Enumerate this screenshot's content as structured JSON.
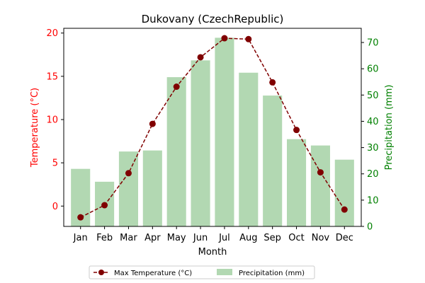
{
  "chart_data": {
    "type": "bar+line",
    "title": "Dukovany (CzechRepublic)",
    "xlabel": "Month",
    "categories": [
      "Jan",
      "Feb",
      "Mar",
      "Apr",
      "May",
      "Jun",
      "Jul",
      "Aug",
      "Sep",
      "Oct",
      "Nov",
      "Dec"
    ],
    "series": [
      {
        "name": "Max Temperature (°C)",
        "type": "line",
        "axis": "left",
        "values": [
          -1.3,
          0.1,
          3.8,
          9.5,
          13.8,
          17.2,
          19.4,
          19.3,
          14.3,
          8.8,
          3.9,
          -0.4
        ],
        "color": "#800000",
        "style": "dashed",
        "marker": "circle"
      },
      {
        "name": "Precipitation (mm)",
        "type": "bar",
        "axis": "right",
        "values": [
          21.9,
          17.0,
          28.5,
          28.9,
          56.8,
          63.2,
          71.8,
          58.5,
          49.8,
          33.2,
          30.8,
          25.4
        ],
        "color": "#b2d8b2"
      }
    ],
    "y_left": {
      "label": "Temperature (°C)",
      "color": "#ff0000",
      "ylim": [
        -2.35,
        20.55
      ],
      "ticks": [
        0,
        5,
        10,
        15,
        20
      ]
    },
    "y_right": {
      "label": "Precipitation (mm)",
      "color": "#008000",
      "ylim": [
        0,
        75.4
      ],
      "ticks": [
        0,
        10,
        20,
        30,
        40,
        50,
        60,
        70
      ]
    },
    "legend_position": "bottom-center",
    "grid": false
  }
}
